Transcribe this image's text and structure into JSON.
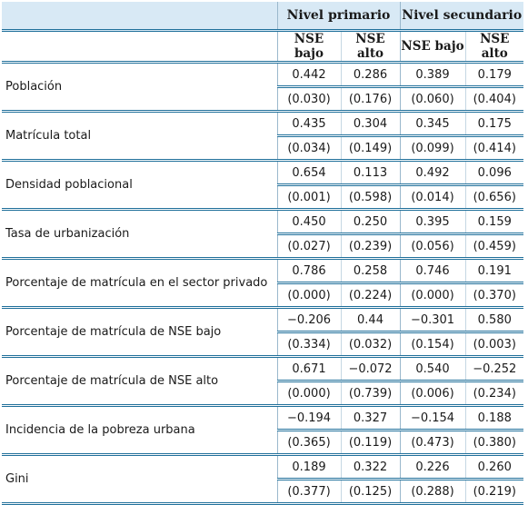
{
  "header": {
    "groups": [
      "Nivel primario",
      "Nivel secundario"
    ],
    "subcolumns": [
      "NSE bajo",
      "NSE alto",
      "NSE bajo",
      "NSE alto"
    ]
  },
  "rows": [
    {
      "label": "Población",
      "coef": [
        "0.442",
        "0.286",
        "0.389",
        "0.179"
      ],
      "pval": [
        "(0.030)",
        "(0.176)",
        "(0.060)",
        "(0.404)"
      ]
    },
    {
      "label": "Matrícula total",
      "coef": [
        "0.435",
        "0.304",
        "0.345",
        "0.175"
      ],
      "pval": [
        "(0.034)",
        "(0.149)",
        "(0.099)",
        "(0.414)"
      ]
    },
    {
      "label": "Densidad poblacional",
      "coef": [
        "0.654",
        "0.113",
        "0.492",
        "0.096"
      ],
      "pval": [
        "(0.001)",
        "(0.598)",
        "(0.014)",
        "(0.656)"
      ]
    },
    {
      "label": "Tasa de urbanización",
      "coef": [
        "0.450",
        "0.250",
        "0.395",
        "0.159"
      ],
      "pval": [
        "(0.027)",
        "(0.239)",
        "(0.056)",
        "(0.459)"
      ]
    },
    {
      "label": "Porcentaje de matrícula en el sector privado",
      "coef": [
        "0.786",
        "0.258",
        "0.746",
        "0.191"
      ],
      "pval": [
        "(0.000)",
        "(0.224)",
        "(0.000)",
        "(0.370)"
      ]
    },
    {
      "label": "Porcentaje de matrícula de NSE bajo",
      "coef": [
        "−0.206",
        "0.44",
        "−0.301",
        "0.580"
      ],
      "pval": [
        "(0.334)",
        "(0.032)",
        "(0.154)",
        "(0.003)"
      ]
    },
    {
      "label": "Porcentaje de matrícula de NSE alto",
      "coef": [
        "0.671",
        "−0.072",
        "0.540",
        "−0.252"
      ],
      "pval": [
        "(0.000)",
        "(0.739)",
        "(0.006)",
        "(0.234)"
      ]
    },
    {
      "label": "Incidencia de la pobreza urbana",
      "coef": [
        "−0.194",
        "0.327",
        "−0.154",
        "0.188"
      ],
      "pval": [
        "(0.365)",
        "(0.119)",
        "(0.473)",
        "(0.380)"
      ]
    },
    {
      "label": "Gini",
      "coef": [
        "0.189",
        "0.322",
        "0.226",
        "0.260"
      ],
      "pval": [
        "(0.377)",
        "(0.125)",
        "(0.288)",
        "(0.219)"
      ]
    }
  ]
}
